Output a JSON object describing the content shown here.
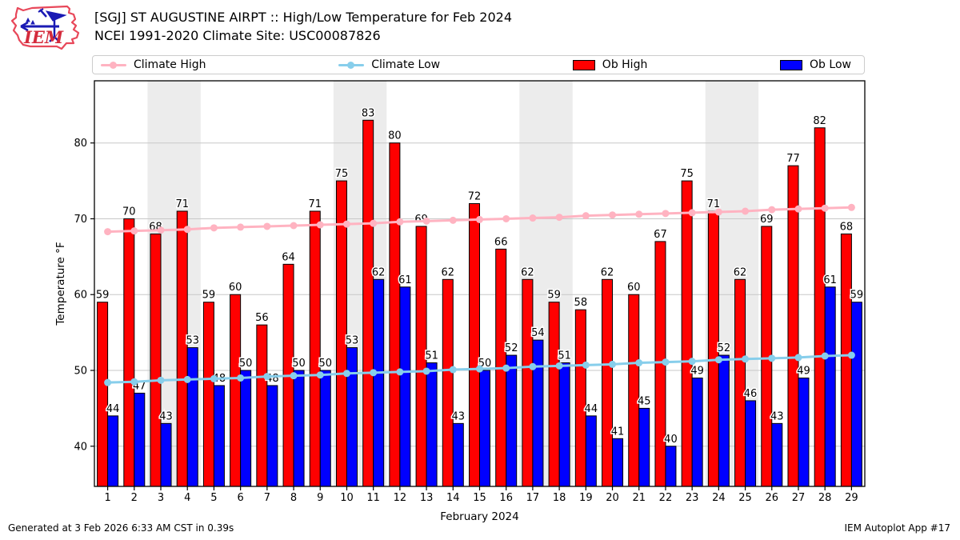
{
  "header": {
    "logo_text": "IEM"
  },
  "footer": {
    "left": "Generated at 3 Feb 2026 6:33 AM CST in 0.39s",
    "right": "IEM Autoplot App #17"
  },
  "chart_data": {
    "type": "bar",
    "title": "[SGJ] ST AUGUSTINE AIRPT :: High/Low Temperature for Feb 2024",
    "subtitle": "NCEI 1991-2020 Climate Site: USC00087826",
    "xlabel": "February 2024",
    "ylabel": "Temperature °F",
    "x": [
      1,
      2,
      3,
      4,
      5,
      6,
      7,
      8,
      9,
      10,
      11,
      12,
      13,
      14,
      15,
      16,
      17,
      18,
      19,
      20,
      21,
      22,
      23,
      24,
      25,
      26,
      27,
      28,
      29
    ],
    "yticks": [
      40,
      50,
      60,
      70,
      80
    ],
    "ylim": [
      34.7,
      88.2
    ],
    "grid": true,
    "legend_position": "top",
    "legend": [
      "Climate High",
      "Climate Low",
      "Ob High",
      "Ob Low"
    ],
    "weekend_shading_days": [
      [
        3,
        4
      ],
      [
        10,
        11
      ],
      [
        17,
        18
      ],
      [
        24,
        25
      ]
    ],
    "colors": {
      "ob_high": "#ff0000",
      "ob_low": "#0000ff",
      "climate_high": "#ffb3c1",
      "climate_low": "#87ceeb",
      "weekend_band": "#ececec",
      "gridline": "#c8c8c8"
    },
    "series": [
      {
        "name": "Climate High",
        "type": "line",
        "color": "#ffb3c1",
        "values": [
          68.3,
          68.4,
          68.5,
          68.6,
          68.8,
          68.9,
          69.0,
          69.1,
          69.2,
          69.3,
          69.4,
          69.6,
          69.7,
          69.8,
          69.9,
          70.0,
          70.1,
          70.2,
          70.4,
          70.5,
          70.6,
          70.7,
          70.8,
          70.9,
          71.0,
          71.2,
          71.3,
          71.4,
          71.5
        ]
      },
      {
        "name": "Climate Low",
        "type": "line",
        "color": "#87ceeb",
        "values": [
          48.4,
          48.5,
          48.7,
          48.8,
          48.9,
          49.0,
          49.2,
          49.3,
          49.4,
          49.6,
          49.7,
          49.8,
          49.9,
          50.1,
          50.2,
          50.3,
          50.5,
          50.6,
          50.7,
          50.8,
          51.0,
          51.1,
          51.2,
          51.4,
          51.5,
          51.6,
          51.7,
          51.9,
          52.0
        ]
      },
      {
        "name": "Ob High",
        "type": "bar",
        "color": "#ff0000",
        "values": [
          59,
          70,
          68,
          71,
          59,
          60,
          56,
          64,
          71,
          75,
          83,
          80,
          69,
          62,
          72,
          66,
          62,
          59,
          58,
          62,
          60,
          67,
          75,
          71,
          62,
          69,
          77,
          82,
          68
        ]
      },
      {
        "name": "Ob Low",
        "type": "bar",
        "color": "#0000ff",
        "values": [
          44,
          47,
          43,
          53,
          48,
          50,
          48,
          50,
          50,
          53,
          62,
          61,
          51,
          43,
          50,
          52,
          54,
          51,
          44,
          41,
          45,
          40,
          49,
          52,
          46,
          43,
          49,
          61,
          59
        ]
      }
    ]
  }
}
